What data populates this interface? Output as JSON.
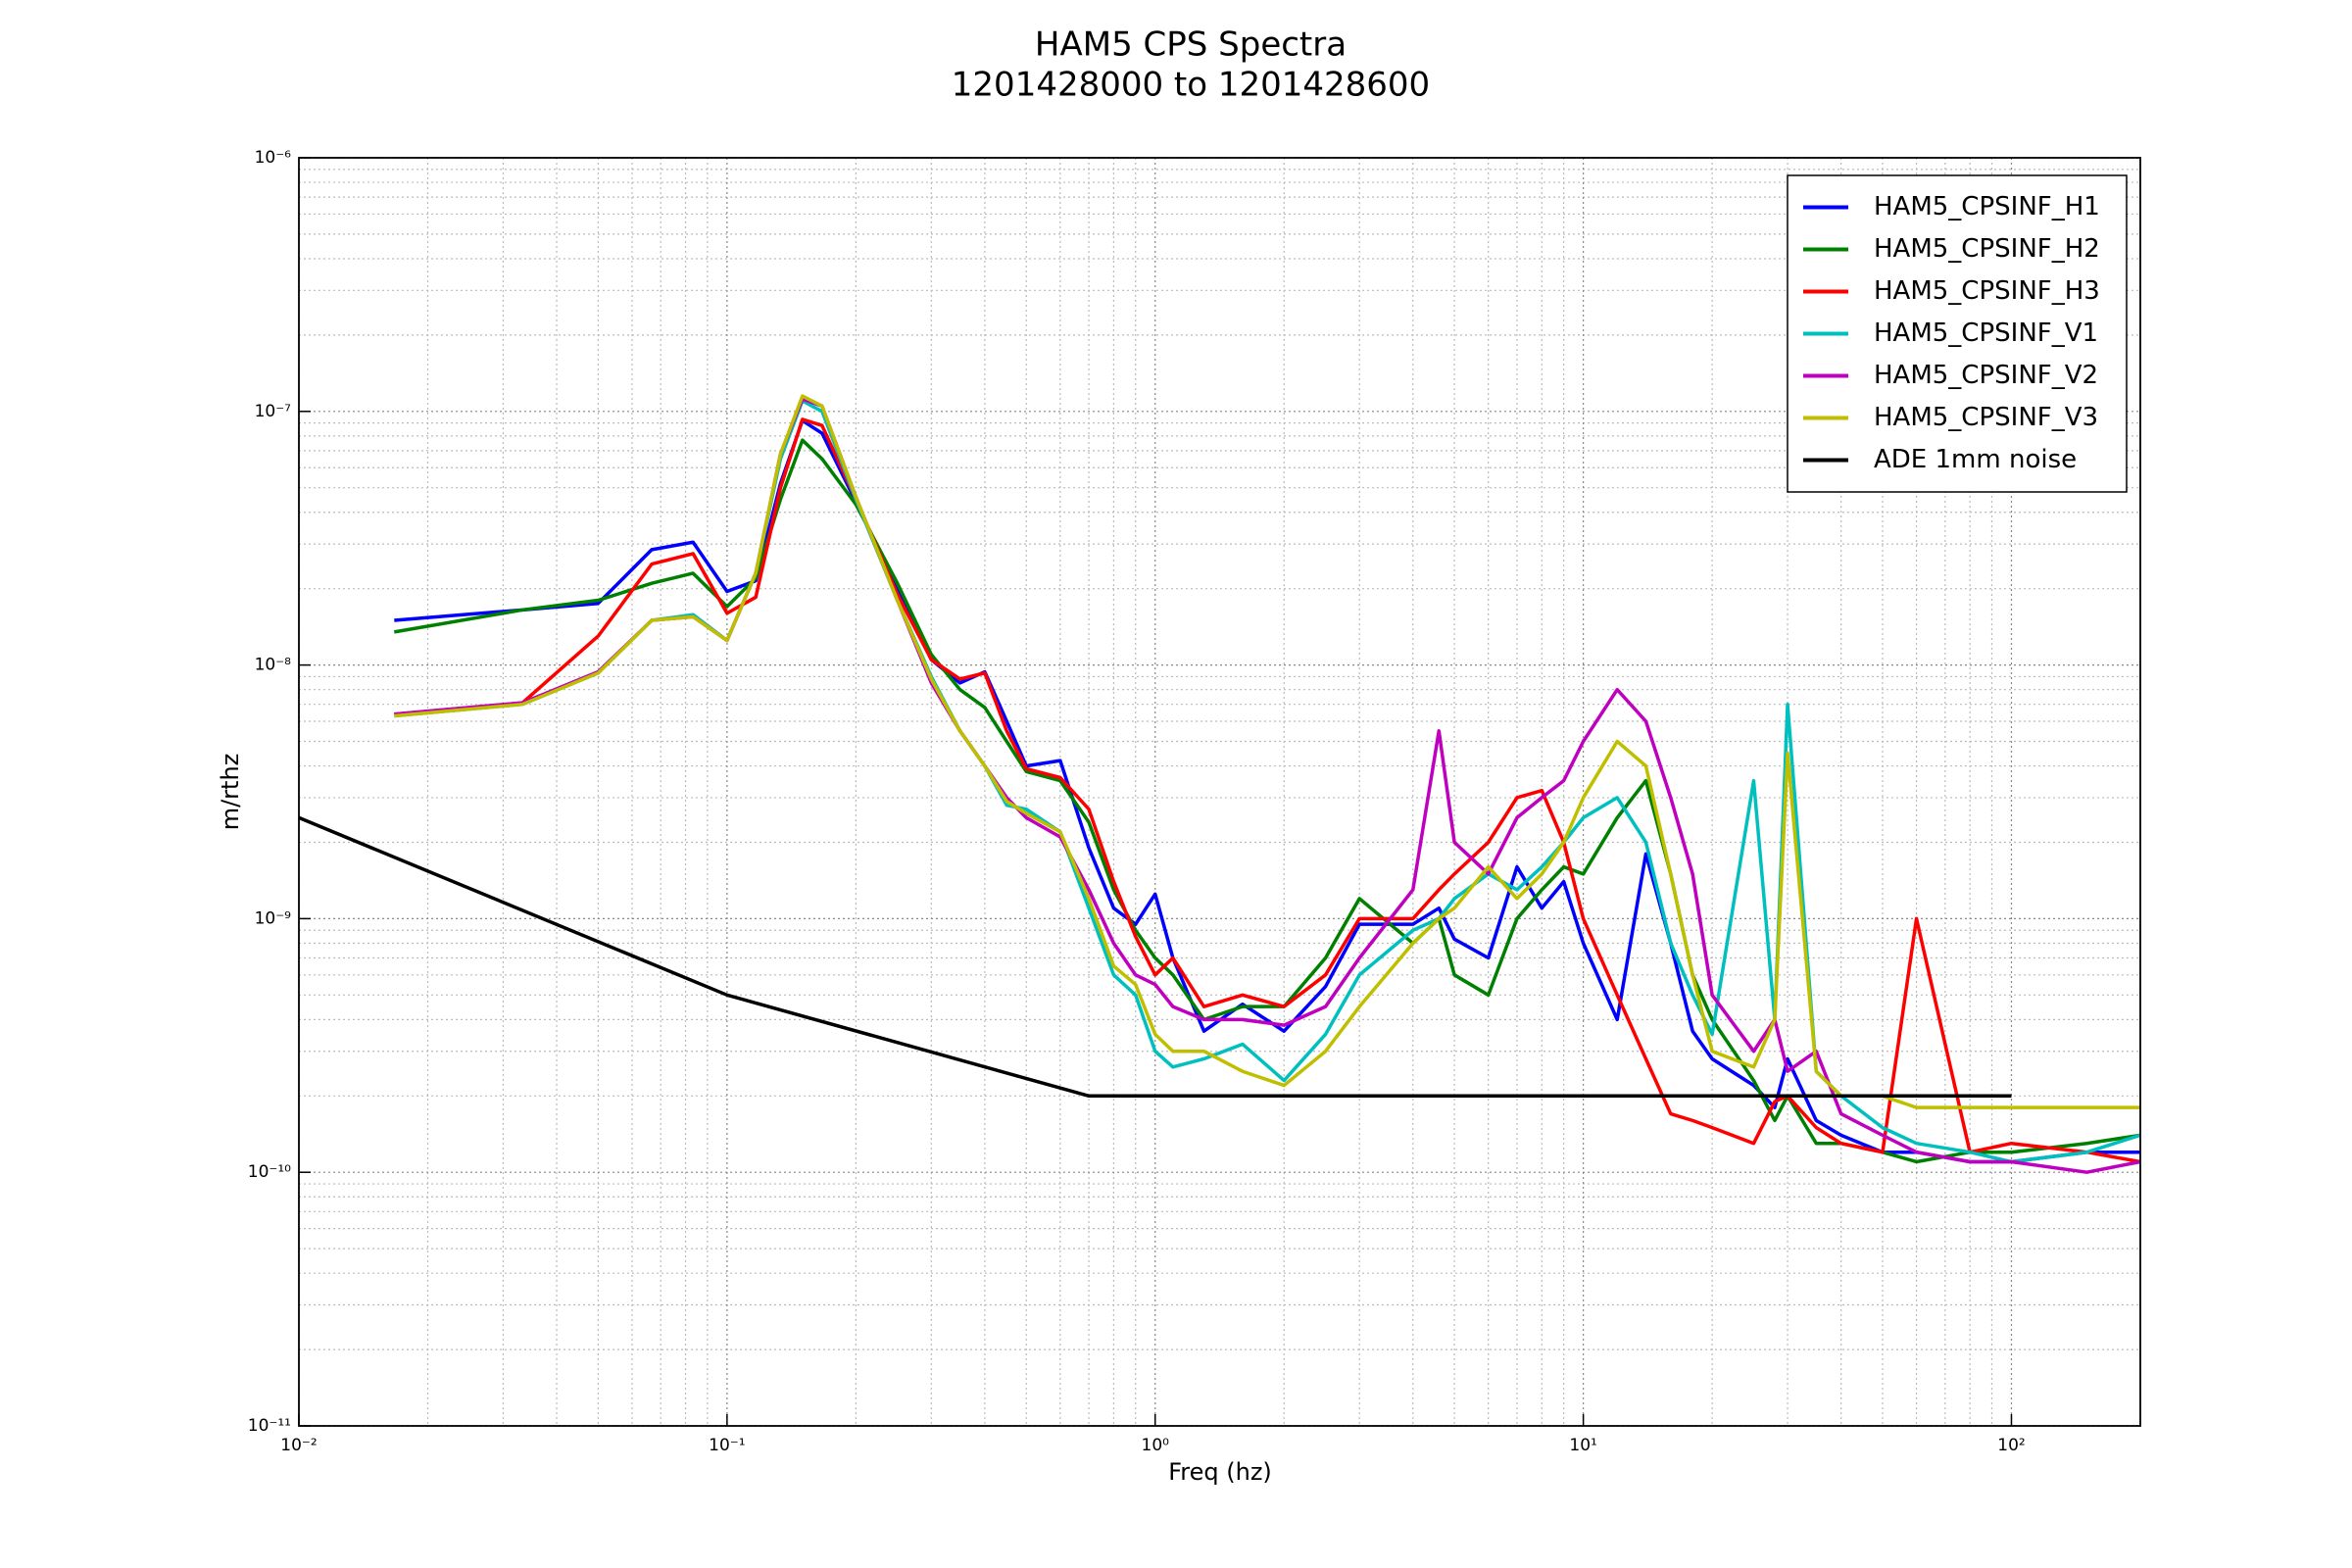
{
  "chart_data": {
    "type": "line",
    "title": "HAM5 CPS Spectra",
    "subtitle": "1201428000 to 1201428600",
    "x_label": "Freq (hz)",
    "y_label": "m/rthz",
    "xscale": "log",
    "yscale": "log",
    "xlim": [
      0.01,
      200
    ],
    "ylim": [
      1e-11,
      1e-06
    ],
    "xticks": [
      {
        "value": 0.01,
        "label": "10⁻²"
      },
      {
        "value": 0.1,
        "label": "10⁻¹"
      },
      {
        "value": 1,
        "label": "10⁰"
      },
      {
        "value": 10,
        "label": "10¹"
      },
      {
        "value": 100,
        "label": "10²"
      }
    ],
    "yticks": [
      {
        "value": 1e-11,
        "label": "10⁻¹¹"
      },
      {
        "value": 1e-10,
        "label": "10⁻¹⁰"
      },
      {
        "value": 1e-09,
        "label": "10⁻⁹"
      },
      {
        "value": 1e-08,
        "label": "10⁻⁸"
      },
      {
        "value": 1e-07,
        "label": "10⁻⁷"
      },
      {
        "value": 1e-06,
        "label": "10⁻⁶"
      }
    ],
    "xminorticks": [
      0.02,
      0.03,
      0.04,
      0.05,
      0.06,
      0.07,
      0.08,
      0.09,
      0.2,
      0.3,
      0.4,
      0.5,
      0.6,
      0.7,
      0.8,
      0.9,
      2,
      3,
      4,
      5,
      6,
      7,
      8,
      9,
      20,
      30,
      40,
      50,
      60,
      70,
      80,
      90
    ],
    "yminorticks": [
      2e-11,
      3e-11,
      4e-11,
      5e-11,
      6e-11,
      7e-11,
      8e-11,
      9e-11,
      2e-10,
      3e-10,
      4e-10,
      5e-10,
      6e-10,
      7e-10,
      8e-10,
      9e-10,
      2e-09,
      3e-09,
      4e-09,
      5e-09,
      6e-09,
      7e-09,
      8e-09,
      9e-09,
      2e-08,
      3e-08,
      4e-08,
      5e-08,
      6e-08,
      7e-08,
      8e-08,
      9e-08,
      2e-07,
      3e-07,
      4e-07,
      5e-07,
      6e-07,
      7e-07,
      8e-07,
      9e-07
    ],
    "grid": true,
    "legend": "upper right",
    "series": [
      {
        "name": "HAM5_CPSINF_H1",
        "color": "#0000ff",
        "x": [
          0.0167,
          0.0333,
          0.05,
          0.0667,
          0.0833,
          0.1,
          0.1167,
          0.1333,
          0.15,
          0.1667,
          0.2,
          0.25,
          0.3,
          0.35,
          0.4,
          0.45,
          0.5,
          0.6,
          0.7,
          0.8,
          0.9,
          1.0,
          1.1,
          1.3,
          1.6,
          2,
          2.5,
          3,
          4,
          4.6,
          5,
          6,
          7,
          8,
          9,
          10,
          12,
          14,
          16,
          18,
          20,
          25,
          28,
          30,
          35,
          40,
          50,
          60,
          80,
          100,
          150,
          200
        ],
        "values": [
          1.5e-08,
          1.65e-08,
          1.75e-08,
          2.85e-08,
          3.05e-08,
          1.95e-08,
          2.15e-08,
          5.2e-08,
          9.2e-08,
          8.2e-08,
          4.4e-08,
          2e-08,
          1.05e-08,
          8.5e-09,
          9.4e-09,
          6e-09,
          4e-09,
          4.2e-09,
          1.9e-09,
          1.1e-09,
          9.5e-10,
          1.25e-09,
          7e-10,
          3.6e-10,
          4.6e-10,
          3.6e-10,
          5.4e-10,
          9.5e-10,
          9.5e-10,
          1.1e-09,
          8.3e-10,
          7e-10,
          1.6e-09,
          1.1e-09,
          1.4e-09,
          8e-10,
          4e-10,
          1.8e-09,
          8e-10,
          3.6e-10,
          2.8e-10,
          2.2e-10,
          1.8e-10,
          2.8e-10,
          1.6e-10,
          1.4e-10,
          1.2e-10,
          1.2e-10,
          1.1e-10,
          1.1e-10,
          1.2e-10,
          1.2e-10
        ]
      },
      {
        "name": "HAM5_CPSINF_H2",
        "color": "#008000",
        "x": [
          0.0167,
          0.0333,
          0.05,
          0.0667,
          0.0833,
          0.1,
          0.1167,
          0.1333,
          0.15,
          0.1667,
          0.2,
          0.25,
          0.3,
          0.35,
          0.4,
          0.45,
          0.5,
          0.6,
          0.7,
          0.8,
          0.9,
          1.0,
          1.1,
          1.3,
          1.6,
          2,
          2.5,
          3,
          4,
          4.6,
          5,
          6,
          7,
          8,
          9,
          10,
          12,
          14,
          16,
          18,
          20,
          25,
          28,
          30,
          35,
          40,
          50,
          60,
          80,
          100,
          150,
          200
        ],
        "values": [
          1.35e-08,
          1.65e-08,
          1.8e-08,
          2.1e-08,
          2.3e-08,
          1.7e-08,
          2.2e-08,
          4.5e-08,
          7.7e-08,
          6.5e-08,
          4.3e-08,
          2.1e-08,
          1.1e-08,
          8e-09,
          6.8e-09,
          5e-09,
          3.8e-09,
          3.5e-09,
          2.4e-09,
          1.3e-09,
          9e-10,
          7e-10,
          6e-10,
          4e-10,
          4.5e-10,
          4.5e-10,
          7e-10,
          1.2e-09,
          8e-10,
          1e-09,
          6e-10,
          5e-10,
          1e-09,
          1.3e-09,
          1.6e-09,
          1.5e-09,
          2.5e-09,
          3.5e-09,
          1.5e-09,
          6e-10,
          4e-10,
          2.3e-10,
          1.6e-10,
          2e-10,
          1.3e-10,
          1.3e-10,
          1.2e-10,
          1.1e-10,
          1.2e-10,
          1.2e-10,
          1.3e-10,
          1.4e-10
        ]
      },
      {
        "name": "HAM5_CPSINF_H3",
        "color": "#ff0000",
        "x": [
          0.0167,
          0.0333,
          0.05,
          0.0667,
          0.0833,
          0.1,
          0.1167,
          0.1333,
          0.15,
          0.1667,
          0.2,
          0.25,
          0.3,
          0.35,
          0.4,
          0.45,
          0.5,
          0.6,
          0.7,
          0.8,
          0.9,
          1.0,
          1.1,
          1.3,
          1.6,
          2,
          2.5,
          3,
          4,
          4.6,
          5,
          6,
          7,
          8,
          9,
          10,
          12,
          14,
          16,
          18,
          20,
          25,
          28,
          30,
          35,
          40,
          50,
          60,
          80,
          100,
          150,
          200
        ],
        "values": [
          6.4e-09,
          7.1e-09,
          1.3e-08,
          2.5e-08,
          2.75e-08,
          1.6e-08,
          1.85e-08,
          5e-08,
          9.3e-08,
          8.8e-08,
          4.5e-08,
          1.9e-08,
          1.05e-08,
          8.8e-09,
          9.3e-09,
          5.5e-09,
          3.9e-09,
          3.6e-09,
          2.7e-09,
          1.4e-09,
          8.5e-10,
          6e-10,
          7e-10,
          4.5e-10,
          5e-10,
          4.5e-10,
          6e-10,
          1e-09,
          1e-09,
          1.3e-09,
          1.5e-09,
          2e-09,
          3e-09,
          3.2e-09,
          2e-09,
          1e-09,
          5e-10,
          2.8e-10,
          1.7e-10,
          1.6e-10,
          1.5e-10,
          1.3e-10,
          1.9e-10,
          2e-10,
          1.5e-10,
          1.3e-10,
          1.2e-10,
          1e-09,
          1.2e-10,
          1.3e-10,
          1.2e-10,
          1.1e-10
        ]
      },
      {
        "name": "HAM5_CPSINF_V1",
        "color": "#00bfbf",
        "x": [
          0.0167,
          0.0333,
          0.05,
          0.0667,
          0.0833,
          0.1,
          0.1167,
          0.1333,
          0.15,
          0.1667,
          0.2,
          0.25,
          0.3,
          0.35,
          0.4,
          0.45,
          0.5,
          0.6,
          0.7,
          0.8,
          0.9,
          1.0,
          1.1,
          1.3,
          1.6,
          2,
          2.5,
          3,
          4,
          4.6,
          5,
          6,
          7,
          8,
          9,
          10,
          12,
          14,
          16,
          18,
          20,
          25,
          28,
          30,
          35,
          40,
          50,
          60,
          80,
          100,
          150,
          200
        ],
        "values": [
          6.3e-09,
          7e-09,
          9.3e-09,
          1.5e-08,
          1.58e-08,
          1.25e-08,
          2.3e-08,
          6.5e-08,
          1.1e-07,
          1e-07,
          4.5e-08,
          1.8e-08,
          9e-09,
          5.5e-09,
          4e-09,
          2.8e-09,
          2.7e-09,
          2.2e-09,
          1.1e-09,
          6e-10,
          5e-10,
          3e-10,
          2.6e-10,
          2.8e-10,
          3.2e-10,
          2.3e-10,
          3.5e-10,
          6e-10,
          9e-10,
          1e-09,
          1.2e-09,
          1.5e-09,
          1.3e-09,
          1.6e-09,
          2e-09,
          2.5e-09,
          3e-09,
          2e-09,
          8e-10,
          5e-10,
          3.5e-10,
          3.5e-09,
          4e-10,
          7e-09,
          2.5e-10,
          2e-10,
          1.5e-10,
          1.3e-10,
          1.2e-10,
          1.1e-10,
          1.2e-10,
          1.4e-10
        ]
      },
      {
        "name": "HAM5_CPSINF_V2",
        "color": "#bf00bf",
        "x": [
          0.0167,
          0.0333,
          0.05,
          0.0667,
          0.0833,
          0.1,
          0.1167,
          0.1333,
          0.15,
          0.1667,
          0.2,
          0.25,
          0.3,
          0.35,
          0.4,
          0.45,
          0.5,
          0.6,
          0.7,
          0.8,
          0.9,
          1.0,
          1.1,
          1.3,
          1.6,
          2,
          2.5,
          3,
          4,
          4.6,
          5,
          6,
          7,
          8,
          9,
          10,
          12,
          14,
          16,
          18,
          20,
          25,
          28,
          30,
          35,
          40,
          50,
          60,
          80,
          100,
          150,
          200
        ],
        "values": [
          6.4e-09,
          7.1e-09,
          9.4e-09,
          1.5e-08,
          1.55e-08,
          1.25e-08,
          2.3e-08,
          6.8e-08,
          1.12e-07,
          1.05e-07,
          4.6e-08,
          1.8e-08,
          8.5e-09,
          5.5e-09,
          4e-09,
          3e-09,
          2.5e-09,
          2.1e-09,
          1.3e-09,
          8e-10,
          6e-10,
          5.5e-10,
          4.5e-10,
          4e-10,
          4e-10,
          3.8e-10,
          4.5e-10,
          7e-10,
          1.3e-09,
          5.5e-09,
          2e-09,
          1.5e-09,
          2.5e-09,
          3e-09,
          3.5e-09,
          5e-09,
          8e-09,
          6e-09,
          3e-09,
          1.5e-09,
          5e-10,
          3e-10,
          4e-10,
          2.5e-10,
          3e-10,
          1.7e-10,
          1.4e-10,
          1.2e-10,
          1.1e-10,
          1.1e-10,
          1e-10,
          1.1e-10
        ]
      },
      {
        "name": "HAM5_CPSINF_V3",
        "color": "#bfbf00",
        "x": [
          0.0167,
          0.0333,
          0.05,
          0.0667,
          0.0833,
          0.1,
          0.1167,
          0.1333,
          0.15,
          0.1667,
          0.2,
          0.25,
          0.3,
          0.35,
          0.4,
          0.45,
          0.5,
          0.6,
          0.7,
          0.8,
          0.9,
          1.0,
          1.1,
          1.3,
          1.6,
          2,
          2.5,
          3,
          4,
          4.6,
          5,
          6,
          7,
          8,
          9,
          10,
          12,
          14,
          16,
          18,
          20,
          25,
          28,
          30,
          35,
          40,
          50,
          60,
          80,
          100,
          150,
          200
        ],
        "values": [
          6.3e-09,
          7e-09,
          9.3e-09,
          1.5e-08,
          1.55e-08,
          1.25e-08,
          2.3e-08,
          6.8e-08,
          1.15e-07,
          1.05e-07,
          4.6e-08,
          1.8e-08,
          8.8e-09,
          5.5e-09,
          4e-09,
          2.9e-09,
          2.6e-09,
          2.2e-09,
          1.2e-09,
          6.5e-10,
          5.5e-10,
          3.5e-10,
          3e-10,
          3e-10,
          2.5e-10,
          2.2e-10,
          3e-10,
          4.5e-10,
          8e-10,
          1e-09,
          1.1e-09,
          1.6e-09,
          1.2e-09,
          1.5e-09,
          2e-09,
          3e-09,
          5e-09,
          4e-09,
          1.5e-09,
          6e-10,
          3e-10,
          2.6e-10,
          4e-10,
          4.5e-09,
          2.5e-10,
          2e-10,
          2e-10,
          1.8e-10,
          1.8e-10,
          1.8e-10,
          1.8e-10,
          1.8e-10
        ]
      },
      {
        "name": "ADE 1mm noise",
        "color": "#000000",
        "x": [
          0.01,
          0.1,
          0.7,
          100
        ],
        "values": [
          2.5e-09,
          5e-10,
          2e-10,
          2e-10
        ]
      }
    ]
  }
}
